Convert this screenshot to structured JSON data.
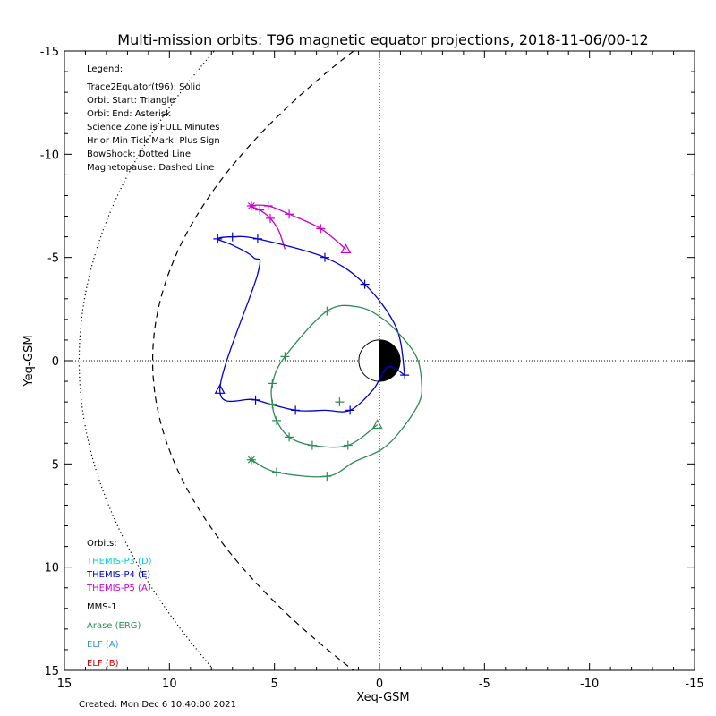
{
  "chart_data": {
    "type": "line",
    "title": "Multi-mission orbits: T96 magnetic equator projections, 2018-11-06/00-12",
    "xlabel": "Xeq-GSM",
    "ylabel": "Yeq-GSM",
    "xlim": [
      15,
      -15
    ],
    "ylim": [
      -15,
      15
    ],
    "x_ticks": [
      "15",
      "10",
      "5",
      "0",
      "-5",
      "-10",
      "-15"
    ],
    "y_ticks": [
      "-15",
      "-10",
      "-5",
      "0",
      "5",
      "10",
      "15"
    ],
    "legend": {
      "header": "Legend:",
      "lines": [
        "Trace2Equator(t96): Solid",
        "Orbit Start: Triangle",
        "Orbit End: Asterisk",
        "Science Zone is FULL Minutes",
        "Hr or Min Tick Mark: Plus Sign",
        "BowShock: Dotted Line",
        "Magnetopause: Dashed Line"
      ]
    },
    "orbits": {
      "header": "Orbits:",
      "entries": [
        {
          "label": "THEMIS-P3 (D)",
          "color": "#00d4d4"
        },
        {
          "label": "THEMIS-P4 (E)",
          "color": "#0000cc"
        },
        {
          "label": "THEMIS-P5 (A)",
          "color": "#cc00cc"
        },
        {
          "label": "MMS-1",
          "color": "#000000"
        },
        {
          "label": "Arase (ERG)",
          "color": "#2e8b57"
        },
        {
          "label": "ELF (A)",
          "color": "#3a8fd9"
        },
        {
          "label": "ELF (B)",
          "color": "#cc0000"
        }
      ]
    },
    "created": "Created: Mon Dec  6 10:40:00 2021",
    "series": [
      {
        "name": "THEMIS-P5 (A)",
        "color": "#cc00cc",
        "points": [
          [
            1.6,
            -5.4
          ],
          [
            2.8,
            -6.4
          ],
          [
            4.3,
            -7.1
          ],
          [
            5.3,
            -7.5
          ],
          [
            6.1,
            -7.5
          ],
          [
            5.7,
            -7.3
          ],
          [
            5.2,
            -6.9
          ],
          [
            4.8,
            -6.3
          ],
          [
            4.5,
            -5.4
          ]
        ],
        "ticks": [
          [
            2.8,
            -6.4
          ],
          [
            4.3,
            -7.1
          ],
          [
            5.3,
            -7.5
          ],
          [
            5.7,
            -7.3
          ],
          [
            5.2,
            -6.9
          ]
        ],
        "start": [
          1.6,
          -5.4
        ],
        "end": [
          6.1,
          -7.5
        ]
      },
      {
        "name": "THEMIS-P4 (E)",
        "color": "#0000cc",
        "points": [
          [
            -1.2,
            0.7
          ],
          [
            -0.8,
            -1.6
          ],
          [
            0.7,
            -3.7
          ],
          [
            2.6,
            -5.0
          ],
          [
            5.8,
            -5.9
          ],
          [
            7.0,
            -6.0
          ],
          [
            7.7,
            -5.9
          ],
          [
            7.0,
            -5.6
          ],
          [
            6.0,
            -5.0
          ],
          [
            5.8,
            -4.2
          ],
          [
            7.6,
            1.4
          ],
          [
            5.9,
            1.9
          ],
          [
            4.0,
            2.4
          ],
          [
            2.6,
            2.4
          ],
          [
            1.4,
            2.4
          ],
          [
            0.3,
            1.4
          ],
          [
            -0.4,
            0.3
          ],
          [
            -1.2,
            0.7
          ]
        ],
        "ticks": [
          [
            -1.2,
            0.7
          ],
          [
            0.7,
            -3.7
          ],
          [
            2.6,
            -5.0
          ],
          [
            5.8,
            -5.9
          ],
          [
            7.0,
            -6.0
          ],
          [
            7.7,
            -5.9
          ],
          [
            5.9,
            1.9
          ],
          [
            4.0,
            2.4
          ],
          [
            1.4,
            2.4
          ]
        ],
        "start": [
          7.6,
          1.4
        ],
        "end": null
      },
      {
        "name": "Arase (ERG)",
        "color": "#2e8b57",
        "points": [
          [
            0.1,
            3.1
          ],
          [
            1.5,
            4.1
          ],
          [
            3.2,
            4.1
          ],
          [
            4.3,
            3.7
          ],
          [
            4.9,
            2.9
          ],
          [
            5.1,
            2.1
          ],
          [
            5.1,
            1.1
          ],
          [
            4.5,
            -0.2
          ],
          [
            2.5,
            -2.4
          ],
          [
            1.0,
            -2.6
          ],
          [
            -0.2,
            -2.0
          ],
          [
            -1.2,
            -1.0
          ],
          [
            -1.8,
            -0.1
          ],
          [
            -2.0,
            1.0
          ],
          [
            -1.9,
            2.0
          ],
          [
            -1.0,
            3.4
          ],
          [
            -0.1,
            4.3
          ],
          [
            1.2,
            4.9
          ],
          [
            2.5,
            5.6
          ],
          [
            4.9,
            5.4
          ],
          [
            6.1,
            4.8
          ]
        ],
        "ticks": [
          [
            1.5,
            4.1
          ],
          [
            3.2,
            4.1
          ],
          [
            4.3,
            3.7
          ],
          [
            4.9,
            2.9
          ],
          [
            5.1,
            2.1
          ],
          [
            5.1,
            1.1
          ],
          [
            4.5,
            -0.2
          ],
          [
            2.5,
            -2.4
          ],
          [
            1.9,
            2.0
          ],
          [
            2.5,
            5.6
          ],
          [
            4.9,
            5.4
          ]
        ],
        "start": [
          0.1,
          3.1
        ],
        "end": [
          6.1,
          4.8
        ]
      }
    ],
    "magnetopause": {
      "x0": 10.8,
      "flare": 0.0425
    },
    "bowshock": {
      "x0": 14.3,
      "flare": 0.0286
    }
  }
}
